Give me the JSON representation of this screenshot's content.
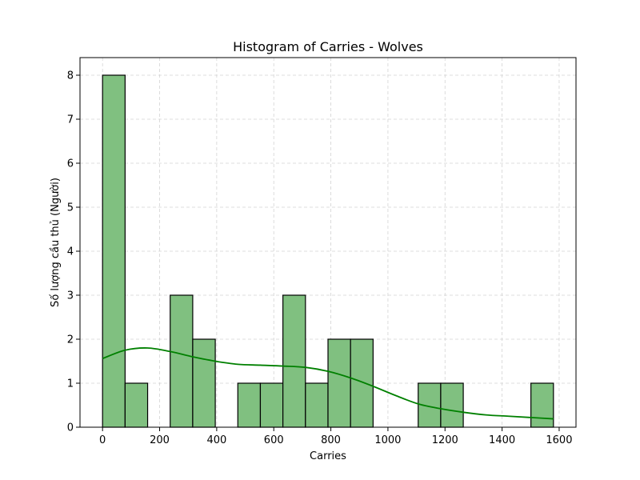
{
  "chart_data": {
    "type": "bar",
    "title": "Histogram of Carries - Wolves",
    "xlabel": "Carries",
    "ylabel": "Số lượng cầu thủ (Người)",
    "xlim": [
      -79,
      1659
    ],
    "ylim": [
      0,
      8.4
    ],
    "bar_color": "#80c080",
    "line_color": "#008000",
    "grid": true,
    "x_ticks": [
      0,
      200,
      400,
      600,
      800,
      1000,
      1200,
      1400,
      1600
    ],
    "x_tick_labels": [
      "0",
      "200",
      "400",
      "600",
      "800",
      "1000",
      "1200",
      "1400",
      "1600"
    ],
    "y_ticks": [
      0,
      1,
      2,
      3,
      4,
      5,
      6,
      7,
      8
    ],
    "y_tick_labels": [
      "0",
      "1",
      "2",
      "3",
      "4",
      "5",
      "6",
      "7",
      "8"
    ],
    "bins": [
      {
        "start": 0,
        "end": 79,
        "count": 8
      },
      {
        "start": 79,
        "end": 158,
        "count": 1
      },
      {
        "start": 158,
        "end": 237,
        "count": 0
      },
      {
        "start": 237,
        "end": 316,
        "count": 3
      },
      {
        "start": 316,
        "end": 395,
        "count": 2
      },
      {
        "start": 395,
        "end": 474,
        "count": 0
      },
      {
        "start": 474,
        "end": 553,
        "count": 1
      },
      {
        "start": 553,
        "end": 632,
        "count": 1
      },
      {
        "start": 632,
        "end": 711,
        "count": 3
      },
      {
        "start": 711,
        "end": 790,
        "count": 1
      },
      {
        "start": 790,
        "end": 869,
        "count": 2
      },
      {
        "start": 869,
        "end": 948,
        "count": 2
      },
      {
        "start": 948,
        "end": 1027,
        "count": 0
      },
      {
        "start": 1027,
        "end": 1106,
        "count": 0
      },
      {
        "start": 1106,
        "end": 1185,
        "count": 1
      },
      {
        "start": 1185,
        "end": 1264,
        "count": 1
      },
      {
        "start": 1264,
        "end": 1343,
        "count": 0
      },
      {
        "start": 1343,
        "end": 1422,
        "count": 0
      },
      {
        "start": 1422,
        "end": 1501,
        "count": 0
      },
      {
        "start": 1501,
        "end": 1580,
        "count": 1
      }
    ],
    "kde": {
      "x": [
        0,
        79,
        158,
        237,
        316,
        395,
        474,
        553,
        632,
        711,
        790,
        869,
        948,
        1027,
        1106,
        1185,
        1264,
        1343,
        1422,
        1501,
        1580
      ],
      "y": [
        1.56,
        1.75,
        1.8,
        1.72,
        1.6,
        1.5,
        1.43,
        1.41,
        1.39,
        1.36,
        1.27,
        1.12,
        0.93,
        0.72,
        0.53,
        0.42,
        0.34,
        0.28,
        0.25,
        0.22,
        0.19
      ]
    }
  }
}
